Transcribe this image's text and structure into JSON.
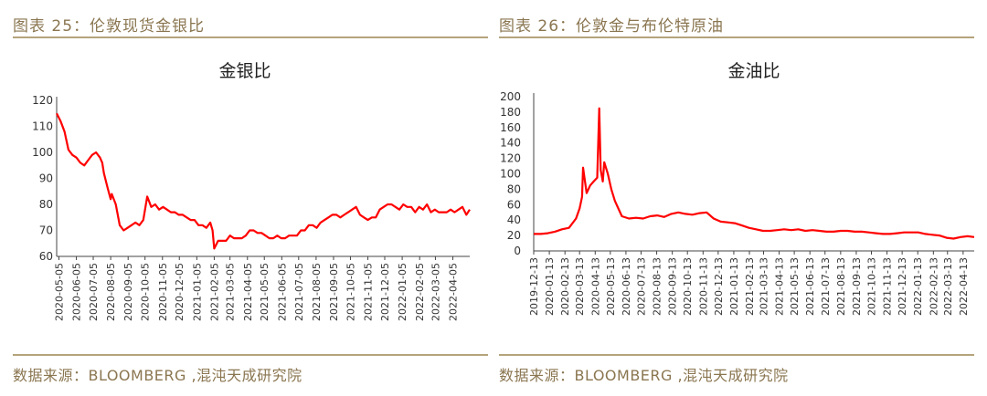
{
  "panels": [
    {
      "figure_title": "图表 25：伦敦现货金银比",
      "source": "数据来源：BLOOMBERG ,混沌天成研究院"
    },
    {
      "figure_title": "图表 26：伦敦金与布伦特原油",
      "source": "数据来源：BLOOMBERG ,混沌天成研究院"
    }
  ],
  "chart_data": [
    {
      "type": "line",
      "title": "金银比",
      "xlabel": "",
      "ylabel": "",
      "ylim": [
        60,
        120
      ],
      "yticks": [
        60,
        70,
        80,
        90,
        100,
        110,
        120
      ],
      "xticks": [
        "2020-05-05",
        "2020-06-05",
        "2020-07-05",
        "2020-08-05",
        "2020-09-05",
        "2020-10-05",
        "2020-11-05",
        "2020-12-05",
        "2021-01-05",
        "2021-02-05",
        "2021-03-05",
        "2021-04-05",
        "2021-05-05",
        "2021-06-05",
        "2021-07-05",
        "2021-08-05",
        "2021-09-05",
        "2021-10-05",
        "2021-11-05",
        "2021-12-05",
        "2022-01-05",
        "2022-02-05",
        "2022-03-05",
        "2022-04-05"
      ],
      "x_range": [
        "2020-05-01",
        "2022-05-05"
      ],
      "grid": false,
      "color": "#ff0000",
      "series": [
        {
          "x": [
            "2020-05-01",
            "2020-05-08",
            "2020-05-15",
            "2020-05-22",
            "2020-05-29",
            "2020-06-05",
            "2020-06-12",
            "2020-06-19",
            "2020-06-26",
            "2020-07-03",
            "2020-07-10",
            "2020-07-17",
            "2020-07-21",
            "2020-07-24",
            "2020-07-31",
            "2020-08-05",
            "2020-08-07",
            "2020-08-14",
            "2020-08-21",
            "2020-08-28",
            "2020-09-04",
            "2020-09-11",
            "2020-09-18",
            "2020-09-25",
            "2020-10-02",
            "2020-10-09",
            "2020-10-16",
            "2020-10-23",
            "2020-10-30",
            "2020-11-06",
            "2020-11-13",
            "2020-11-20",
            "2020-11-27",
            "2020-12-04",
            "2020-12-11",
            "2020-12-18",
            "2020-12-25",
            "2021-01-01",
            "2021-01-08",
            "2021-01-15",
            "2021-01-22",
            "2021-01-29",
            "2021-02-02",
            "2021-02-05",
            "2021-02-12",
            "2021-02-19",
            "2021-02-26",
            "2021-03-05",
            "2021-03-12",
            "2021-03-19",
            "2021-03-26",
            "2021-04-02",
            "2021-04-09",
            "2021-04-16",
            "2021-04-23",
            "2021-04-30",
            "2021-05-07",
            "2021-05-14",
            "2021-05-21",
            "2021-05-28",
            "2021-06-04",
            "2021-06-11",
            "2021-06-18",
            "2021-06-25",
            "2021-07-02",
            "2021-07-09",
            "2021-07-16",
            "2021-07-23",
            "2021-07-30",
            "2021-08-06",
            "2021-08-13",
            "2021-08-20",
            "2021-08-27",
            "2021-09-03",
            "2021-09-10",
            "2021-09-17",
            "2021-09-24",
            "2021-10-01",
            "2021-10-08",
            "2021-10-15",
            "2021-10-22",
            "2021-10-29",
            "2021-11-05",
            "2021-11-12",
            "2021-11-19",
            "2021-11-26",
            "2021-12-03",
            "2021-12-10",
            "2021-12-17",
            "2021-12-24",
            "2021-12-31",
            "2022-01-07",
            "2022-01-14",
            "2022-01-21",
            "2022-01-28",
            "2022-02-04",
            "2022-02-11",
            "2022-02-18",
            "2022-02-25",
            "2022-03-04",
            "2022-03-11",
            "2022-03-18",
            "2022-03-25",
            "2022-04-01",
            "2022-04-08",
            "2022-04-15",
            "2022-04-22",
            "2022-04-29",
            "2022-05-05"
          ],
          "y": [
            115,
            112,
            108,
            101,
            99,
            98,
            96,
            95,
            97,
            99,
            100,
            98,
            96,
            92,
            86,
            82,
            84,
            80,
            72,
            70,
            71,
            72,
            73,
            72,
            74,
            83,
            79,
            80,
            78,
            79,
            78,
            77,
            77,
            76,
            76,
            75,
            74,
            74,
            72,
            72,
            71,
            73,
            70,
            63,
            66,
            66,
            66,
            68,
            67,
            67,
            67,
            68,
            70,
            70,
            69,
            69,
            68,
            67,
            67,
            68,
            67,
            67,
            68,
            68,
            68,
            70,
            70,
            72,
            72,
            71,
            73,
            74,
            75,
            76,
            76,
            75,
            76,
            77,
            78,
            79,
            76,
            75,
            74,
            75,
            75,
            78,
            79,
            80,
            80,
            79,
            78,
            80,
            79,
            79,
            77,
            79,
            78,
            80,
            77,
            78,
            77,
            77,
            77,
            78,
            77,
            78,
            79,
            76,
            78
          ]
        }
      ]
    },
    {
      "type": "line",
      "title": "金油比",
      "xlabel": "",
      "ylabel": "",
      "ylim": [
        0,
        200
      ],
      "yticks": [
        0,
        20,
        40,
        60,
        80,
        100,
        120,
        140,
        160,
        180,
        200
      ],
      "xticks": [
        "2019-12-13",
        "2020-01-13",
        "2020-02-13",
        "2020-03-13",
        "2020-04-13",
        "2020-05-13",
        "2020-06-13",
        "2020-07-13",
        "2020-08-13",
        "2020-09-13",
        "2020-10-13",
        "2020-11-13",
        "2020-12-13",
        "2021-01-13",
        "2021-02-13",
        "2021-03-13",
        "2021-04-13",
        "2021-05-13",
        "2021-06-13",
        "2021-07-13",
        "2021-08-13",
        "2021-09-13",
        "2021-10-13",
        "2021-11-13",
        "2021-12-13",
        "2022-01-13",
        "2022-02-13",
        "2022-03-13",
        "2022-04-13"
      ],
      "x_range": [
        "2019-12-13",
        "2022-05-05"
      ],
      "grid": false,
      "color": "#ff0000",
      "series": [
        {
          "x": [
            "2019-12-13",
            "2019-12-27",
            "2020-01-10",
            "2020-01-24",
            "2020-02-07",
            "2020-02-21",
            "2020-03-06",
            "2020-03-13",
            "2020-03-18",
            "2020-03-20",
            "2020-03-27",
            "2020-04-03",
            "2020-04-10",
            "2020-04-17",
            "2020-04-21",
            "2020-04-24",
            "2020-04-28",
            "2020-05-01",
            "2020-05-08",
            "2020-05-15",
            "2020-05-22",
            "2020-05-29",
            "2020-06-05",
            "2020-06-19",
            "2020-07-03",
            "2020-07-17",
            "2020-07-31",
            "2020-08-14",
            "2020-08-28",
            "2020-09-11",
            "2020-09-25",
            "2020-10-09",
            "2020-10-23",
            "2020-11-06",
            "2020-11-20",
            "2020-12-04",
            "2020-12-18",
            "2021-01-01",
            "2021-01-15",
            "2021-01-29",
            "2021-02-12",
            "2021-02-26",
            "2021-03-12",
            "2021-03-26",
            "2021-04-09",
            "2021-04-23",
            "2021-05-07",
            "2021-05-21",
            "2021-06-04",
            "2021-06-18",
            "2021-07-02",
            "2021-07-16",
            "2021-07-30",
            "2021-08-13",
            "2021-08-27",
            "2021-09-10",
            "2021-09-24",
            "2021-10-08",
            "2021-10-22",
            "2021-11-05",
            "2021-11-19",
            "2021-12-03",
            "2021-12-17",
            "2021-12-31",
            "2022-01-14",
            "2022-01-28",
            "2022-02-11",
            "2022-02-25",
            "2022-03-11",
            "2022-03-25",
            "2022-04-08",
            "2022-04-22",
            "2022-05-05"
          ],
          "y": [
            22,
            22,
            23,
            25,
            28,
            30,
            42,
            55,
            70,
            108,
            75,
            85,
            90,
            95,
            185,
            105,
            90,
            115,
            100,
            80,
            65,
            55,
            45,
            42,
            43,
            42,
            45,
            46,
            44,
            48,
            50,
            48,
            47,
            49,
            50,
            42,
            38,
            37,
            36,
            33,
            30,
            28,
            26,
            26,
            27,
            28,
            27,
            28,
            26,
            27,
            26,
            25,
            25,
            26,
            26,
            25,
            25,
            24,
            23,
            22,
            22,
            23,
            24,
            24,
            24,
            22,
            21,
            20,
            17,
            16,
            18,
            19,
            18
          ]
        }
      ]
    }
  ]
}
